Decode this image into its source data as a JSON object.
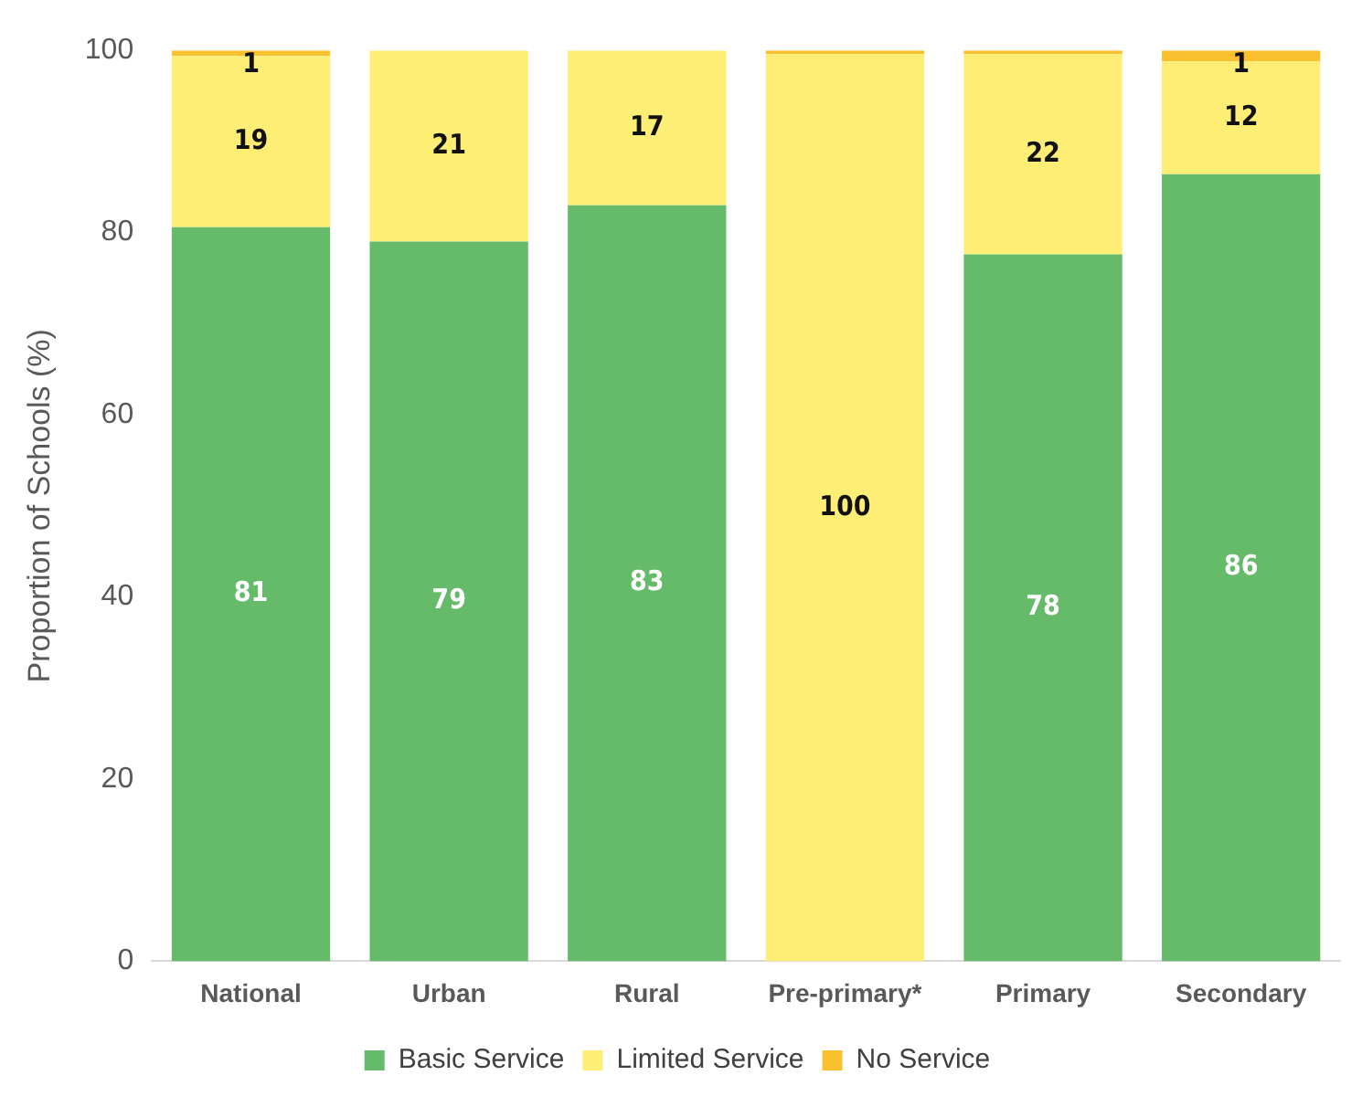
{
  "chart_data": {
    "type": "bar",
    "stacked": true,
    "ylabel": "Proportion of Schools (%)",
    "categories": [
      "National",
      "Urban",
      "Rural",
      "Pre-primary*",
      "Primary",
      "Secondary"
    ],
    "series": [
      {
        "name": "Basic Service",
        "color": "#66bb6a",
        "values": [
          80.6,
          79,
          83,
          0,
          77.6,
          86.4
        ],
        "value_labels": [
          "81",
          "79",
          "83",
          null,
          "78",
          "86"
        ]
      },
      {
        "name": "Limited Service",
        "color": "#ffee75",
        "values": [
          18.8,
          21,
          17,
          99.6,
          22,
          12.4
        ],
        "value_labels": [
          "19",
          "21",
          "17",
          "100",
          "22",
          "12"
        ]
      },
      {
        "name": "No Service",
        "color": "#fbc02d",
        "values": [
          0.6,
          0,
          0,
          0.4,
          0.4,
          1.2
        ],
        "value_labels": [
          "1",
          null,
          null,
          null,
          null,
          "1"
        ]
      }
    ],
    "ylim": [
      0,
      100
    ],
    "yticks": [
      0,
      20,
      40,
      60,
      80,
      100
    ],
    "grid": false,
    "legend": "bottom"
  }
}
